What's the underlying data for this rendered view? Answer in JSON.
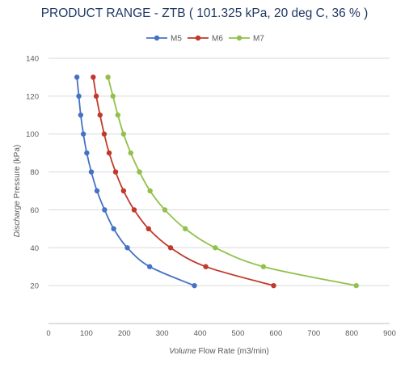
{
  "chart_data": {
    "type": "line",
    "title": "PRODUCT RANGE - ZTB ( 101.325 kPa, 20 deg C, 36 % )",
    "xlabel_prefix": "Volume",
    "xlabel_rest": " Flow Rate (m3/min)",
    "ylabel_prefix": "Discharge",
    "ylabel_rest": " Pressure (kPa)",
    "xlim": [
      0,
      900
    ],
    "ylim": [
      0,
      140
    ],
    "xticks": [
      0,
      100,
      200,
      300,
      400,
      500,
      600,
      700,
      800,
      900
    ],
    "yticks": [
      20,
      40,
      60,
      80,
      100,
      120,
      140
    ],
    "grid": "horizontal",
    "legend_position": "top",
    "series": [
      {
        "name": "M5",
        "color": "#4472c4",
        "points": [
          [
            385,
            20
          ],
          [
            267,
            30
          ],
          [
            208,
            40
          ],
          [
            172,
            50
          ],
          [
            148,
            60
          ],
          [
            128,
            70
          ],
          [
            113,
            80
          ],
          [
            101,
            90
          ],
          [
            92,
            100
          ],
          [
            85,
            110
          ],
          [
            80,
            120
          ],
          [
            75,
            130
          ]
        ]
      },
      {
        "name": "M6",
        "color": "#c0392b",
        "points": [
          [
            594,
            20
          ],
          [
            415,
            30
          ],
          [
            322,
            40
          ],
          [
            264,
            50
          ],
          [
            226,
            60
          ],
          [
            198,
            70
          ],
          [
            177,
            80
          ],
          [
            160,
            90
          ],
          [
            147,
            100
          ],
          [
            136,
            110
          ],
          [
            126,
            120
          ],
          [
            118,
            130
          ]
        ]
      },
      {
        "name": "M7",
        "color": "#92c04a",
        "points": [
          [
            812,
            20
          ],
          [
            567,
            30
          ],
          [
            440,
            40
          ],
          [
            361,
            50
          ],
          [
            307,
            60
          ],
          [
            268,
            70
          ],
          [
            240,
            80
          ],
          [
            217,
            90
          ],
          [
            198,
            100
          ],
          [
            183,
            110
          ],
          [
            170,
            120
          ],
          [
            157,
            130
          ]
        ]
      }
    ]
  }
}
